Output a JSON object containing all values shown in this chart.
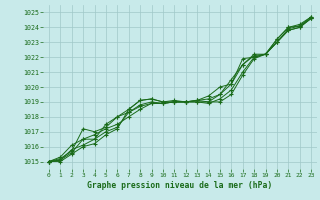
{
  "x_values": [
    0,
    1,
    2,
    3,
    4,
    5,
    6,
    7,
    8,
    9,
    10,
    11,
    12,
    13,
    14,
    15,
    16,
    17,
    18,
    19,
    20,
    21,
    22,
    23
  ],
  "series": [
    [
      1015.0,
      1015.0,
      1015.5,
      1016.0,
      1016.2,
      1016.8,
      1017.2,
      1018.5,
      1019.1,
      1019.2,
      1019.0,
      1019.0,
      1019.0,
      1019.1,
      1019.0,
      1019.0,
      1019.5,
      1020.8,
      1021.9,
      1022.2,
      1023.2,
      1024.0,
      1024.1,
      1024.7
    ],
    [
      1015.0,
      1015.1,
      1015.8,
      1016.1,
      1016.5,
      1017.0,
      1017.3,
      1018.3,
      1018.8,
      1019.0,
      1018.9,
      1019.0,
      1019.0,
      1019.0,
      1018.9,
      1019.2,
      1019.8,
      1021.0,
      1022.0,
      1022.2,
      1023.0,
      1023.8,
      1024.0,
      1024.6
    ],
    [
      1015.0,
      1015.1,
      1015.6,
      1016.5,
      1016.8,
      1017.2,
      1017.5,
      1018.0,
      1018.5,
      1018.9,
      1018.9,
      1019.0,
      1019.0,
      1019.0,
      1019.0,
      1019.5,
      1020.2,
      1021.5,
      1022.1,
      1022.2,
      1023.0,
      1023.8,
      1024.0,
      1024.6
    ],
    [
      1015.0,
      1015.2,
      1015.7,
      1017.2,
      1017.0,
      1017.3,
      1018.0,
      1018.3,
      1018.7,
      1018.9,
      1018.9,
      1019.0,
      1019.0,
      1019.1,
      1019.2,
      1019.5,
      1020.5,
      1021.5,
      1022.2,
      1022.2,
      1023.0,
      1023.9,
      1024.1,
      1024.6
    ],
    [
      1015.0,
      1015.3,
      1016.1,
      1016.5,
      1016.5,
      1017.5,
      1018.0,
      1018.5,
      1019.1,
      1019.2,
      1019.0,
      1019.1,
      1019.0,
      1019.1,
      1019.4,
      1020.0,
      1020.2,
      1021.9,
      1022.0,
      1022.2,
      1023.2,
      1024.0,
      1024.2,
      1024.7
    ]
  ],
  "line_color": "#1a6b1a",
  "marker_color": "#1a6b1a",
  "bg_color": "#c8eaea",
  "grid_color": "#a0c8c8",
  "xlabel": "Graphe pression niveau de la mer (hPa)",
  "xlabel_color": "#1a6b1a",
  "tick_color": "#1a6b1a",
  "ylim": [
    1014.5,
    1025.5
  ],
  "xlim": [
    -0.5,
    23.5
  ],
  "yticks": [
    1015,
    1016,
    1017,
    1018,
    1019,
    1020,
    1021,
    1022,
    1023,
    1024,
    1025
  ],
  "xticks": [
    0,
    1,
    2,
    3,
    4,
    5,
    6,
    7,
    8,
    9,
    10,
    11,
    12,
    13,
    14,
    15,
    16,
    17,
    18,
    19,
    20,
    21,
    22,
    23
  ]
}
